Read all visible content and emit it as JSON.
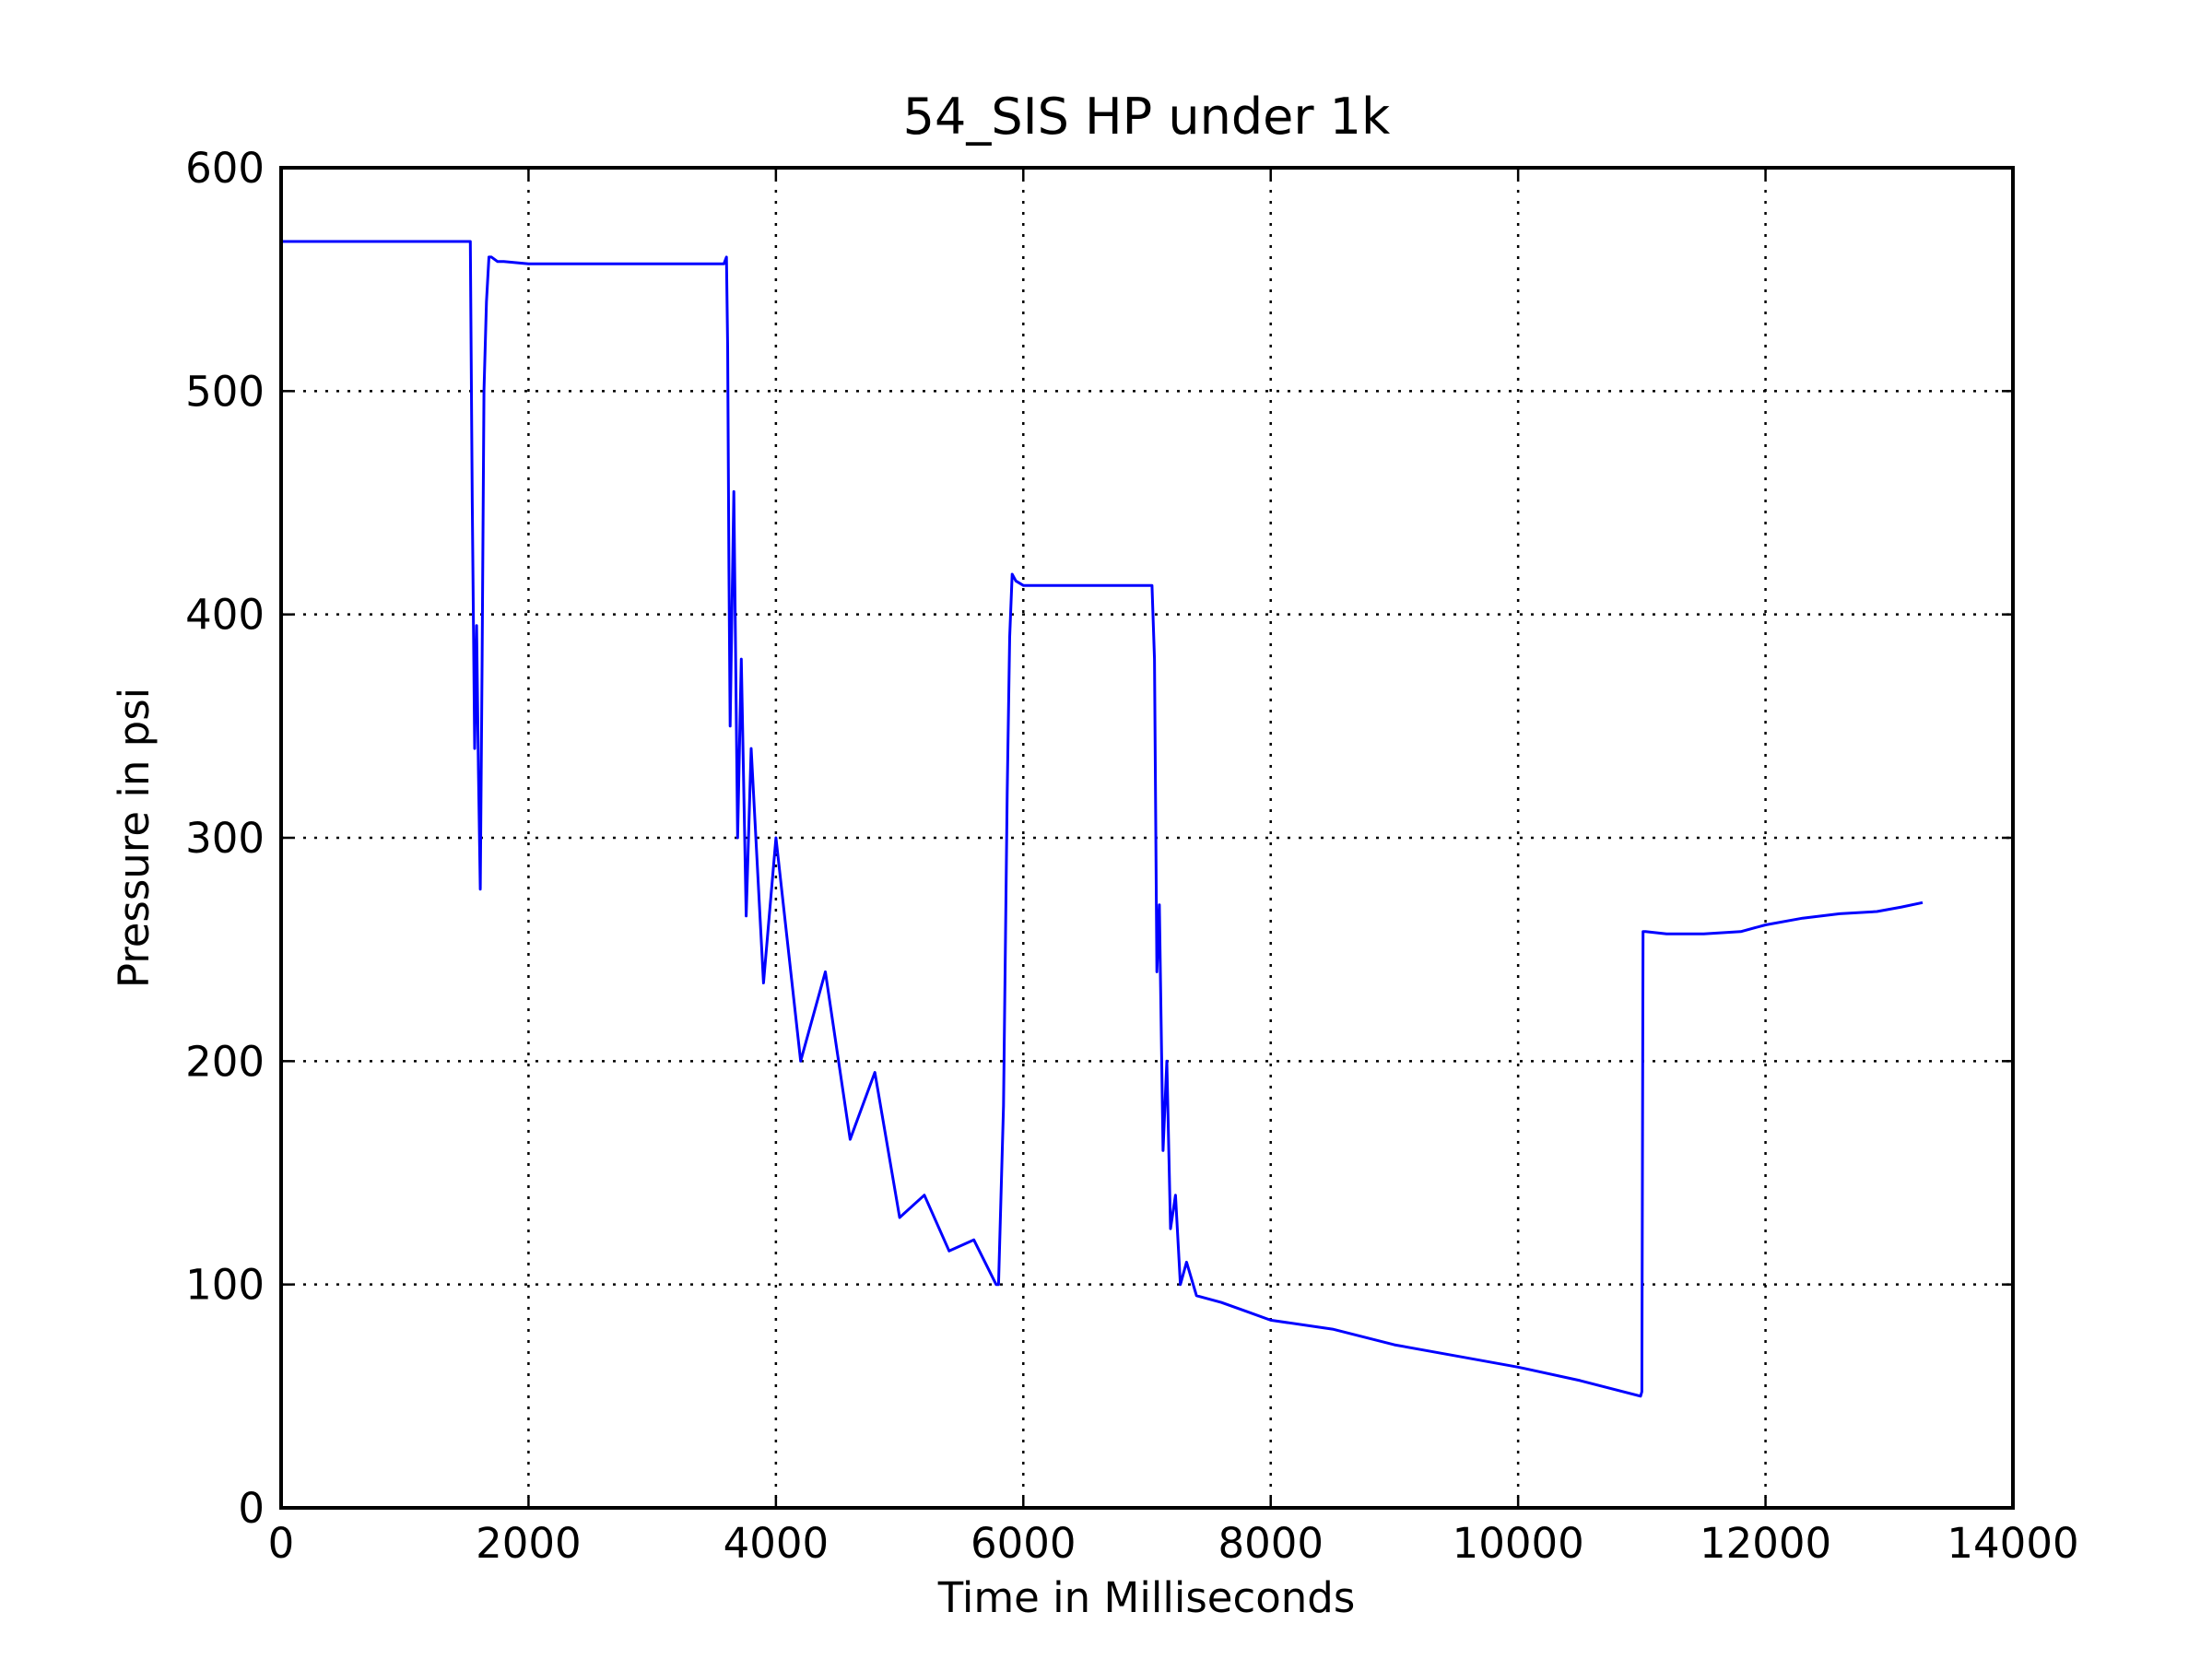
{
  "chart_data": {
    "type": "line",
    "title": "54_SIS HP under 1k",
    "xlabel": "Time in Milliseconds",
    "ylabel": "Pressure in psi",
    "xlim": [
      0,
      14000
    ],
    "ylim": [
      0,
      600
    ],
    "xticks": [
      0,
      2000,
      4000,
      6000,
      8000,
      10000,
      12000,
      14000
    ],
    "yticks": [
      0,
      100,
      200,
      300,
      400,
      500,
      600
    ],
    "grid": true,
    "series": [
      {
        "color": "#0000ff",
        "x": [
          0,
          300,
          600,
          900,
          1200,
          1500,
          1530,
          1545,
          1555,
          1565,
          1580,
          1595,
          1610,
          1625,
          1640,
          1660,
          1680,
          1700,
          1750,
          1800,
          2000,
          2500,
          3000,
          3400,
          3580,
          3600,
          3610,
          3620,
          3630,
          3660,
          3690,
          3720,
          3760,
          3800,
          3900,
          4000,
          4200,
          4400,
          4600,
          4800,
          5000,
          5200,
          5400,
          5600,
          5780,
          5800,
          5840,
          5870,
          5890,
          5910,
          5940,
          6000,
          6200,
          6500,
          6800,
          7020,
          7040,
          7060,
          7080,
          7100,
          7130,
          7160,
          7190,
          7230,
          7270,
          7320,
          7400,
          7600,
          7800,
          8000,
          8500,
          9000,
          9500,
          10000,
          10500,
          10990,
          11000,
          11010,
          11030,
          11200,
          11500,
          11800,
          12000,
          12300,
          12600,
          12900,
          13100,
          13270
        ],
        "y": [
          567,
          567,
          567,
          567,
          567,
          567,
          567,
          450,
          395,
          340,
          395,
          330,
          277,
          380,
          500,
          540,
          560,
          560,
          558,
          558,
          557,
          557,
          557,
          557,
          557,
          560,
          520,
          420,
          350,
          455,
          300,
          380,
          265,
          340,
          235,
          300,
          200,
          240,
          165,
          195,
          130,
          140,
          115,
          120,
          100,
          100,
          180,
          320,
          390,
          418,
          415,
          413,
          413,
          413,
          413,
          413,
          413,
          380,
          240,
          270,
          160,
          200,
          125,
          140,
          100,
          110,
          95,
          92,
          88,
          84,
          80,
          73,
          68,
          63,
          57,
          50,
          52,
          258,
          258,
          257,
          257,
          258,
          261,
          264,
          266,
          267,
          269,
          271
        ]
      }
    ]
  }
}
